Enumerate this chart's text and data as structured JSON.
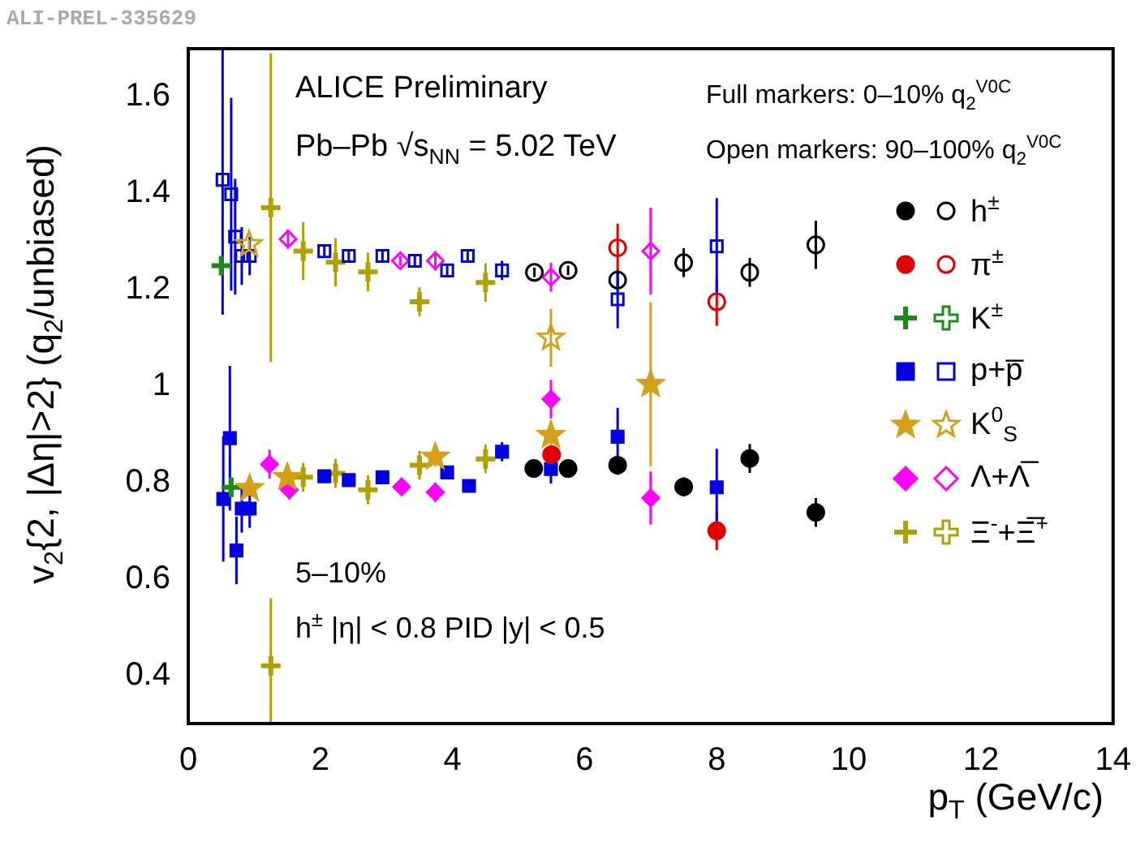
{
  "chart_data": {
    "type": "scatter",
    "xlabel": "p$_{T}$ (GeV/c)",
    "ylabel": "v$_{2}${2, |Δη|>2} (q$_{2}$/unbiased)",
    "xlim": [
      0,
      14
    ],
    "xticks": [
      0,
      2,
      4,
      6,
      8,
      10,
      12,
      14
    ],
    "ylim": [
      0.3,
      1.7
    ],
    "yticks": [
      0.4,
      0.6,
      0.8,
      1,
      1.2,
      1.4,
      1.6
    ],
    "grid": false,
    "legend": "right",
    "annotations": [
      "ALI-PREL-335629",
      "ALICE Preliminary",
      "Pb–Pb √s$_{NN}$ = 5.02 TeV",
      "Full markers: 0–10% q$_{2}$$^{V0C}$",
      "Open markers: 90–100% q$_{2}$$^{V0C}$",
      "5–10%",
      "h$^{±}$ |η| < 0.8   PID |y| < 0.5"
    ],
    "series": [
      {
        "name": "h$^{±}$",
        "color": "#000000",
        "marker": "circle",
        "x": [
          5.23,
          5.75,
          6.5,
          7.5,
          8.5,
          9.5
        ],
        "values": [
          0.829,
          0.829,
          0.836,
          0.791,
          0.85,
          0.738
        ],
        "errors": [
          0.01,
          0.01,
          0.02,
          0.02,
          0.03,
          0.03
        ]
      },
      {
        "color": "#000000",
        "marker": "circle",
        "x": [
          5.24,
          5.75,
          6.5,
          7.5,
          8.5,
          9.5
        ],
        "values": [
          1.236,
          1.24,
          1.22,
          1.256,
          1.236,
          1.293
        ],
        "errors": [
          0.01,
          0.01,
          0.02,
          0.03,
          0.03,
          0.05
        ]
      },
      {
        "name": "π$^{±}$",
        "color": "#e00000",
        "marker": "circle",
        "x": [
          5.5,
          8.0
        ],
        "values": [
          0.858,
          0.7
        ],
        "errors": [
          0.01,
          0.04
        ]
      },
      {
        "color": "#e00000",
        "marker": "circle",
        "x": [
          6.5,
          8.0
        ],
        "values": [
          1.287,
          1.175
        ],
        "errors": [
          0.05,
          0.05
        ]
      },
      {
        "name": "K$^{±}$",
        "color": "#1a8a1a",
        "marker": "cross",
        "x": [
          0.65
        ],
        "values": [
          0.79
        ],
        "errors": [
          0.01
        ]
      },
      {
        "color": "#1a8a1a",
        "marker": "cross",
        "x": [
          0.5
        ],
        "values": [
          1.25
        ],
        "errors": [
          0.01
        ]
      },
      {
        "name": "p+p̅",
        "color": "#0000e0",
        "marker": "square",
        "x": [
          0.53,
          0.63,
          0.73,
          0.81,
          0.93,
          2.06,
          2.43,
          2.94,
          3.92,
          4.25,
          4.75,
          5.49,
          6.5,
          8.0
        ],
        "values": [
          0.766,
          0.892,
          0.659,
          0.746,
          0.746,
          0.813,
          0.805,
          0.811,
          0.821,
          0.793,
          0.864,
          0.828,
          0.895,
          0.79
        ],
        "errors": [
          0.13,
          0.15,
          0.07,
          0.05,
          0.04,
          0.01,
          0.01,
          0.01,
          0.01,
          0.01,
          0.02,
          0.03,
          0.06,
          0.08
        ]
      },
      {
        "color": "#0000e0",
        "marker": "square",
        "x": [
          0.52,
          0.65,
          0.71,
          0.81,
          0.93,
          2.06,
          2.43,
          2.94,
          3.43,
          3.92,
          4.23,
          4.75,
          6.5,
          8.0
        ],
        "values": [
          1.428,
          1.398,
          1.31,
          1.27,
          1.27,
          1.28,
          1.27,
          1.27,
          1.26,
          1.24,
          1.27,
          1.24,
          1.18,
          1.29
        ],
        "errors": [
          0.28,
          0.2,
          0.12,
          0.06,
          0.04,
          0.01,
          0.01,
          0.01,
          0.01,
          0.01,
          0.01,
          0.02,
          0.06,
          0.1
        ]
      },
      {
        "name": "K$^{0}$$_{S}$",
        "color": "#d4a017",
        "marker": "star",
        "x": [
          0.93,
          1.5,
          3.74,
          5.49,
          7.0
        ],
        "values": [
          0.788,
          0.811,
          0.853,
          0.898,
          1.004
        ],
        "errors": [
          0.01,
          0.01,
          0.02,
          0.03,
          0.17
        ]
      },
      {
        "color": "#d4a017",
        "marker": "star",
        "x": [
          0.92,
          5.49
        ],
        "values": [
          1.294,
          1.1
        ],
        "errors": [
          0.01,
          0.06
        ]
      },
      {
        "name": "Λ+Λ̅",
        "color": "#ff00ff",
        "marker": "diamond",
        "x": [
          1.23,
          1.53,
          3.23,
          3.74,
          5.49,
          7.0
        ],
        "values": [
          0.838,
          0.785,
          0.791,
          0.78,
          0.973,
          0.768
        ],
        "errors": [
          0.03,
          0.02,
          0.01,
          0.02,
          0.04,
          0.055
        ]
      },
      {
        "color": "#ff00ff",
        "marker": "diamond",
        "x": [
          1.51,
          3.21,
          3.74,
          5.49,
          7.0
        ],
        "values": [
          1.305,
          1.26,
          1.26,
          1.226,
          1.28
        ],
        "errors": [
          0.02,
          0.01,
          0.02,
          0.03,
          0.09
        ]
      },
      {
        "name": "Ξ$^{-}$+Ξ̅$^{+}$",
        "color": "#b0a000",
        "marker": "cross",
        "x": [
          1.25,
          1.74,
          2.23,
          2.72,
          3.5,
          4.5
        ],
        "values": [
          0.42,
          0.811,
          0.819,
          0.785,
          0.836,
          0.849
        ],
        "errors": [
          0.14,
          0.03,
          0.03,
          0.03,
          0.03,
          0.03
        ]
      },
      {
        "color": "#b0a000",
        "marker": "cross",
        "x": [
          1.25,
          1.74,
          2.23,
          2.72,
          3.5,
          4.5
        ],
        "values": [
          1.37,
          1.28,
          1.257,
          1.237,
          1.175,
          1.215
        ],
        "errors": [
          0.32,
          0.06,
          0.05,
          0.04,
          0.03,
          0.04
        ]
      }
    ]
  }
}
